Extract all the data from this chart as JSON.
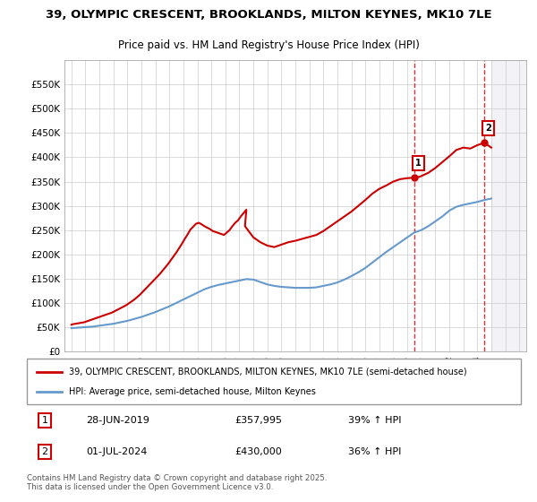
{
  "title_line1": "39, OLYMPIC CRESCENT, BROOKLANDS, MILTON KEYNES, MK10 7LE",
  "title_line2": "Price paid vs. HM Land Registry's House Price Index (HPI)",
  "red_label": "39, OLYMPIC CRESCENT, BROOKLANDS, MILTON KEYNES, MK10 7LE (semi-detached house)",
  "blue_label": "HPI: Average price, semi-detached house, Milton Keynes",
  "annotation1_date": "28-JUN-2019",
  "annotation1_price": "£357,995",
  "annotation1_hpi": "39% ↑ HPI",
  "annotation2_date": "01-JUL-2024",
  "annotation2_price": "£430,000",
  "annotation2_hpi": "36% ↑ HPI",
  "footer": "Contains HM Land Registry data © Crown copyright and database right 2025.\nThis data is licensed under the Open Government Licence v3.0.",
  "red_color": "#cc0000",
  "blue_color": "#6699cc",
  "dashed_red": "#cc0000",
  "background_color": "#ffffff",
  "grid_color": "#cccccc",
  "annotation_box_color": "#cc0000",
  "ylim": [
    0,
    600000
  ],
  "yticks": [
    0,
    50000,
    100000,
    150000,
    200000,
    250000,
    300000,
    350000,
    400000,
    450000,
    500000,
    550000
  ],
  "ytick_labels": [
    "£0",
    "£50K",
    "£100K",
    "£150K",
    "£200K",
    "£250K",
    "£300K",
    "£350K",
    "£400K",
    "£450K",
    "£500K",
    "£550K"
  ],
  "xlim_start": 1994.5,
  "xlim_end": 2027.5,
  "xticks": [
    1995,
    1996,
    1997,
    1998,
    1999,
    2000,
    2001,
    2002,
    2003,
    2004,
    2005,
    2006,
    2007,
    2008,
    2009,
    2010,
    2011,
    2012,
    2013,
    2014,
    2015,
    2016,
    2017,
    2018,
    2019,
    2020,
    2021,
    2022,
    2023,
    2024,
    2025,
    2026,
    2027
  ],
  "marker1_x": 2019.49,
  "marker1_y": 357995,
  "marker2_x": 2024.5,
  "marker2_y": 430000,
  "red_x": [
    1995.0,
    1995.1,
    1995.3,
    1995.5,
    1995.7,
    1995.9,
    1996.1,
    1996.3,
    1996.5,
    1996.7,
    1996.9,
    1997.1,
    1997.3,
    1997.5,
    1997.7,
    1997.9,
    1998.1,
    1998.3,
    1998.5,
    1998.7,
    1998.9,
    1999.1,
    1999.3,
    1999.5,
    1999.7,
    1999.9,
    2000.1,
    2000.3,
    2000.5,
    2000.7,
    2000.9,
    2001.1,
    2001.3,
    2001.5,
    2001.7,
    2001.9,
    2002.1,
    2002.3,
    2002.5,
    2002.7,
    2002.9,
    2003.1,
    2003.3,
    2003.5,
    2003.7,
    2003.9,
    2004.1,
    2004.3,
    2004.5,
    2004.7,
    2004.9,
    2005.1,
    2005.3,
    2005.5,
    2005.7,
    2005.9,
    2006.1,
    2006.3,
    2006.5,
    2006.7,
    2006.9,
    2007.1,
    2007.3,
    2007.5,
    2007.4,
    2008.0,
    2008.5,
    2009.0,
    2009.5,
    2010.0,
    2010.5,
    2011.0,
    2011.5,
    2012.0,
    2012.5,
    2013.0,
    2013.5,
    2014.0,
    2014.5,
    2015.0,
    2015.5,
    2016.0,
    2016.5,
    2017.0,
    2017.5,
    2018.0,
    2018.5,
    2019.0,
    2019.49,
    2019.9,
    2020.5,
    2021.0,
    2021.5,
    2022.0,
    2022.5,
    2023.0,
    2023.5,
    2024.0,
    2024.5,
    2025.0
  ],
  "red_y": [
    55000,
    56000,
    57000,
    58000,
    59000,
    60000,
    62000,
    64000,
    66000,
    68000,
    70000,
    72000,
    74000,
    76000,
    78000,
    80000,
    83000,
    86000,
    89000,
    92000,
    95000,
    99000,
    103000,
    107000,
    112000,
    117000,
    123000,
    129000,
    135000,
    141000,
    147000,
    153000,
    159000,
    166000,
    173000,
    180000,
    188000,
    196000,
    204000,
    213000,
    222000,
    232000,
    241000,
    251000,
    257000,
    263000,
    265000,
    262000,
    258000,
    255000,
    252000,
    248000,
    246000,
    244000,
    242000,
    240000,
    245000,
    250000,
    258000,
    265000,
    270000,
    278000,
    285000,
    292000,
    258000,
    235000,
    225000,
    218000,
    215000,
    220000,
    225000,
    228000,
    232000,
    236000,
    240000,
    248000,
    258000,
    268000,
    278000,
    288000,
    300000,
    312000,
    325000,
    335000,
    342000,
    350000,
    355000,
    357000,
    357995,
    360000,
    368000,
    378000,
    390000,
    402000,
    415000,
    420000,
    418000,
    425000,
    430000,
    420000
  ],
  "blue_x": [
    1995.0,
    1995.5,
    1996.0,
    1996.5,
    1997.0,
    1997.5,
    1998.0,
    1998.5,
    1999.0,
    1999.5,
    2000.0,
    2000.5,
    2001.0,
    2001.5,
    2002.0,
    2002.5,
    2003.0,
    2003.5,
    2004.0,
    2004.5,
    2005.0,
    2005.5,
    2006.0,
    2006.5,
    2007.0,
    2007.5,
    2008.0,
    2008.5,
    2009.0,
    2009.5,
    2010.0,
    2010.5,
    2011.0,
    2011.5,
    2012.0,
    2012.5,
    2013.0,
    2013.5,
    2014.0,
    2014.5,
    2015.0,
    2015.5,
    2016.0,
    2016.5,
    2017.0,
    2017.5,
    2018.0,
    2018.5,
    2019.0,
    2019.5,
    2020.0,
    2020.5,
    2021.0,
    2021.5,
    2022.0,
    2022.5,
    2023.0,
    2023.5,
    2024.0,
    2024.5,
    2025.0
  ],
  "blue_y": [
    48000,
    49000,
    50000,
    51000,
    53000,
    55000,
    57000,
    60000,
    63000,
    67000,
    71000,
    76000,
    81000,
    87000,
    93000,
    100000,
    107000,
    114000,
    121000,
    128000,
    133000,
    137000,
    140000,
    143000,
    146000,
    149000,
    148000,
    143000,
    138000,
    135000,
    133000,
    132000,
    131000,
    131000,
    131000,
    132000,
    135000,
    138000,
    142000,
    148000,
    155000,
    163000,
    172000,
    183000,
    194000,
    205000,
    215000,
    225000,
    235000,
    245000,
    250000,
    258000,
    268000,
    278000,
    290000,
    298000,
    302000,
    305000,
    308000,
    312000,
    315000
  ]
}
